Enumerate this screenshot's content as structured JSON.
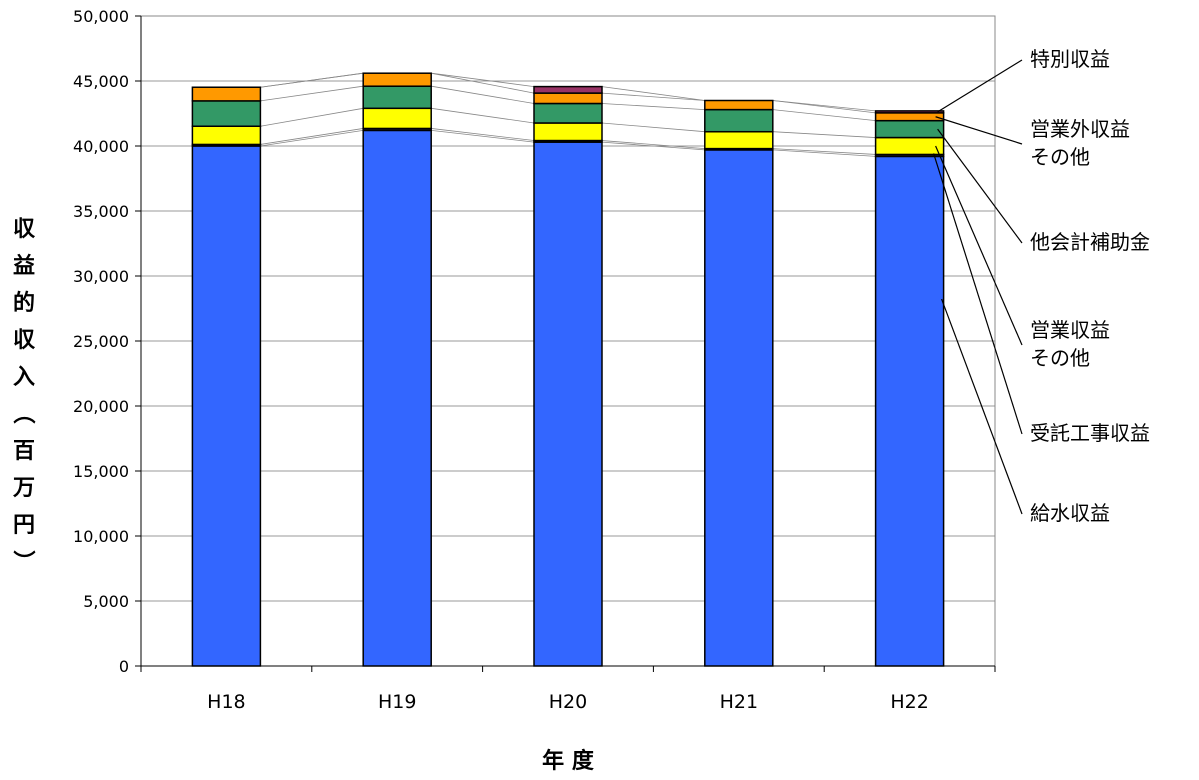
{
  "chart_data": {
    "type": "bar",
    "stacked": true,
    "categories": [
      "H18",
      "H19",
      "H20",
      "H21",
      "H22"
    ],
    "ylim": [
      0,
      50000
    ],
    "yticks": [
      0,
      5000,
      10000,
      15000,
      20000,
      25000,
      30000,
      35000,
      40000,
      45000,
      50000
    ],
    "ytick_labels": [
      "0",
      "5,000",
      "10,000",
      "15,000",
      "20,000",
      "25,000",
      "30,000",
      "35,000",
      "40,000",
      "45,000",
      "50,000"
    ],
    "xlabel": "年 度",
    "ylabel": "収益的収入（百万円）",
    "grid": true,
    "legend_placement": "right",
    "series": [
      {
        "name": "給水収益",
        "color": "#3366FF",
        "values": [
          40000,
          41200,
          40300,
          39700,
          39200
        ]
      },
      {
        "name": "受託工事収益",
        "color": "#2b2b2b",
        "values": [
          120,
          150,
          120,
          100,
          150
        ]
      },
      {
        "name": "営業収益その他",
        "color": "#FFFF00",
        "values": [
          1400,
          1550,
          1350,
          1300,
          1300
        ]
      },
      {
        "name": "他会計補助金",
        "color": "#339966",
        "values": [
          1950,
          1700,
          1500,
          1700,
          1300
        ]
      },
      {
        "name": "営業外収益その他",
        "color": "#FF9900",
        "values": [
          1050,
          1000,
          800,
          700,
          600
        ]
      },
      {
        "name": "特別収益",
        "color": "#993366",
        "values": [
          0,
          0,
          500,
          0,
          150
        ]
      }
    ]
  },
  "legend": [
    {
      "lines": [
        "特別収益"
      ]
    },
    {
      "lines": [
        "営業外収益",
        "その他"
      ]
    },
    {
      "lines": [
        "他会計補助金"
      ]
    },
    {
      "lines": [
        "営業収益",
        "その他"
      ]
    },
    {
      "lines": [
        "受託工事収益"
      ]
    },
    {
      "lines": [
        "給水収益"
      ]
    }
  ]
}
